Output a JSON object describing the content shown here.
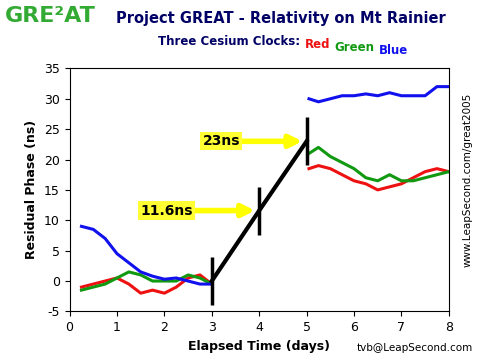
{
  "chart_data": {
    "type": "line",
    "logo": "GRE²AT",
    "title": "Project GREAT - Relativity on Mt Rainier",
    "subtitle": "Three Cesium Clocks:",
    "x_label": "Elapsed Time (days)",
    "y_label": "Residual Phase (ns)",
    "side_note": "www.LeapSecond.com/great2005",
    "footer": "tvb@LeapSecond.com",
    "x": [
      0.25,
      0.5,
      0.75,
      1.0,
      1.25,
      1.5,
      1.75,
      2.0,
      2.25,
      2.5,
      2.75,
      3.0,
      4.0,
      5.05,
      5.25,
      5.5,
      5.75,
      6.0,
      6.25,
      6.5,
      6.75,
      7.0,
      7.25,
      7.5,
      7.75,
      8.0
    ],
    "series": [
      {
        "name": "Red",
        "color": "#ee1111",
        "values": [
          -1,
          -0.5,
          0,
          0.5,
          -0.5,
          -2,
          -1.5,
          -2,
          -1,
          0.5,
          1,
          -0.5,
          null,
          18.5,
          19,
          18.5,
          17.5,
          16.5,
          16,
          15,
          15.5,
          16,
          17,
          18,
          18.5,
          18
        ]
      },
      {
        "name": "Green",
        "color": "#119911",
        "values": [
          -1.5,
          -1,
          -0.5,
          0.5,
          1.5,
          1,
          0,
          0,
          0,
          1,
          0.5,
          -0.5,
          null,
          21,
          22,
          20.5,
          19.5,
          18.5,
          17,
          16.5,
          17.5,
          16.5,
          16.5,
          17,
          17.5,
          18
        ]
      },
      {
        "name": "Blue",
        "color": "#1111ee",
        "values": [
          9,
          8.5,
          7,
          4.5,
          3,
          1.5,
          0.8,
          0.3,
          0.5,
          0,
          -0.5,
          -0.5,
          null,
          30,
          29.5,
          30,
          30.5,
          30.5,
          30.8,
          30.5,
          31,
          30.5,
          30.5,
          30.5,
          32,
          32
        ]
      }
    ],
    "reference_line": {
      "x": [
        3,
        4,
        5
      ],
      "y": [
        0,
        11.6,
        23
      ],
      "color": "#000000"
    },
    "annotations": [
      {
        "text": "11.6ns",
        "x": 4,
        "y": 11.6
      },
      {
        "text": "23ns",
        "x": 5,
        "y": 23
      }
    ],
    "xlim": [
      0,
      8
    ],
    "xticks": [
      0,
      1,
      2,
      3,
      4,
      5,
      6,
      7,
      8
    ],
    "ylim": [
      -5,
      35
    ],
    "yticks": [
      -5,
      0,
      5,
      10,
      15,
      20,
      25,
      30,
      35
    ],
    "grid": false
  }
}
